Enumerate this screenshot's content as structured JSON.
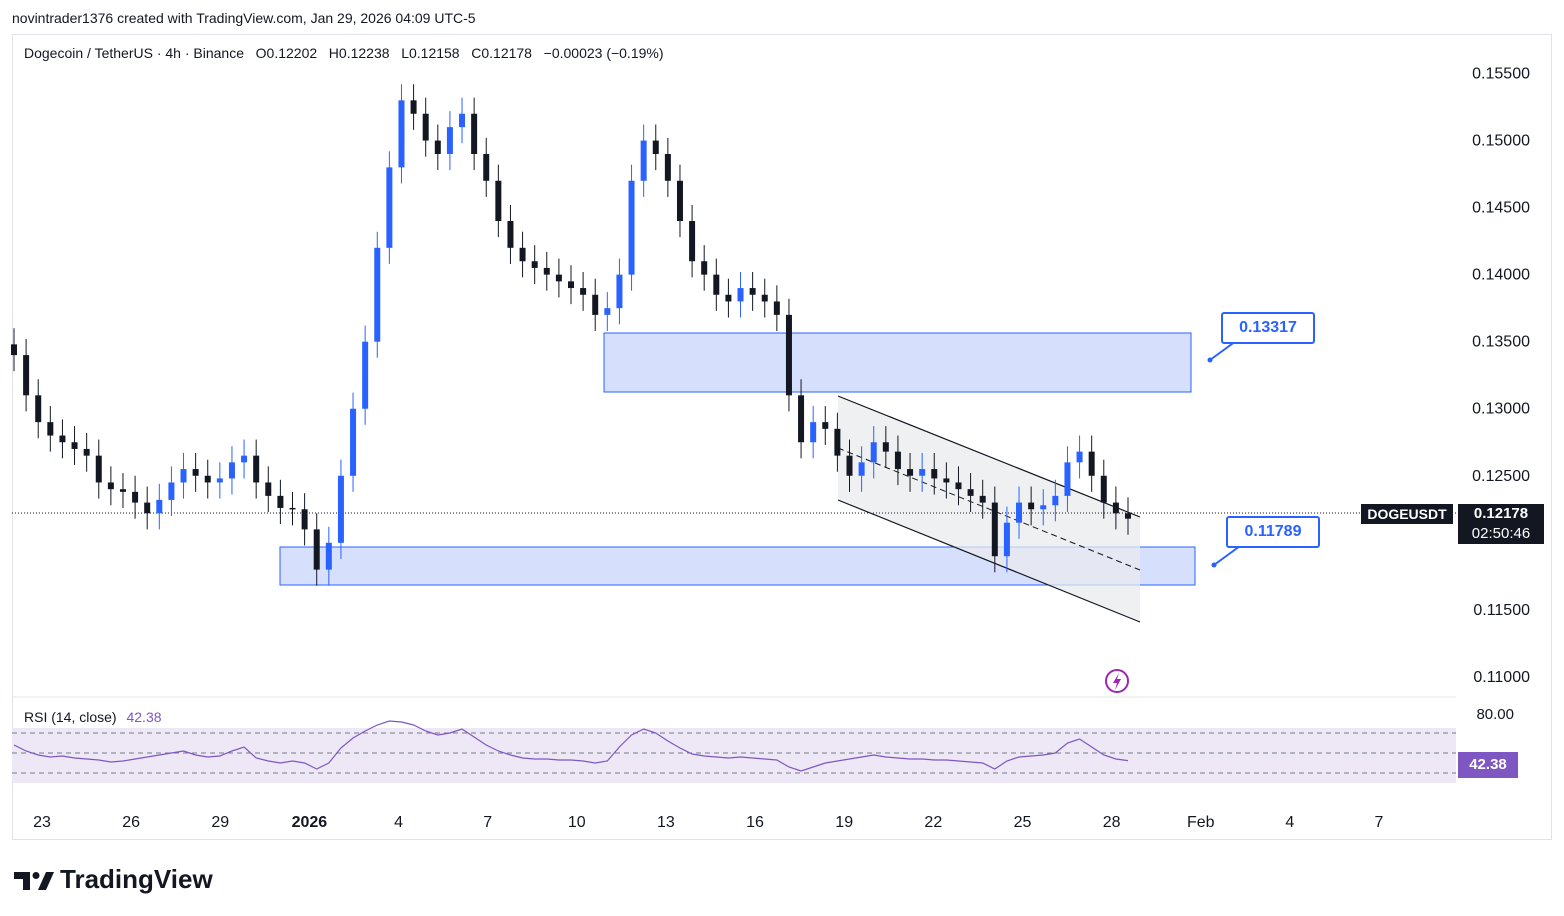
{
  "header": {
    "attribution": "novintrader1376 created with TradingView.com, Jan 29, 2026 04:09 UTC-5"
  },
  "symbol_line": {
    "text": "Dogecoin / TetherUS · 4h · Binance   O0.12202   H0.12238   L0.12158   C0.12178   −0.00023 (−0.19%)"
  },
  "price_tags": {
    "symbol": "DOGEUSDT",
    "last_price": "0.12178",
    "countdown": "02:50:46",
    "rsi_value": "42.38"
  },
  "callouts": {
    "upper": "0.13317",
    "lower": "0.11789"
  },
  "rsi": {
    "label": "RSI (14, close)",
    "value": "42.38",
    "axis_label": "80.00"
  },
  "logo": {
    "text": "TradingView",
    "icon": "tradingview-logo-icon"
  },
  "colors": {
    "up": "#2962ff",
    "down": "#131722",
    "zone_fill": "#d6e0fd",
    "zone_border": "#2962ff",
    "rsi_line": "#7e57c2",
    "rsi_band": "#ede7f6",
    "callout": "#2962ff"
  },
  "chart_data": {
    "type": "line",
    "title": "Dogecoin / TetherUS · 4h · Binance",
    "x_tick_labels": [
      "23",
      "26",
      "29",
      "2026",
      "4",
      "7",
      "10",
      "13",
      "16",
      "19",
      "22",
      "25",
      "28",
      "Feb",
      "4",
      "7"
    ],
    "y_tick_labels": [
      "0.15500",
      "0.15000",
      "0.14500",
      "0.14000",
      "0.13500",
      "0.13000",
      "0.12500",
      "0.11500",
      "0.11000"
    ],
    "ylim": [
      0.1085,
      0.1575
    ],
    "series": [
      {
        "values": [
          0.134,
          0.131,
          0.129,
          0.128,
          0.1275,
          0.127,
          0.1265,
          0.1245,
          0.124,
          0.1238,
          0.123,
          0.1222,
          0.1232,
          0.1245,
          0.1255,
          0.125,
          0.1245,
          0.1248,
          0.126,
          0.1265,
          0.1245,
          0.1235,
          0.1226,
          0.1225,
          0.121,
          0.118,
          0.12,
          0.125,
          0.13,
          0.135,
          0.142,
          0.148,
          0.153,
          0.152,
          0.15,
          0.149,
          0.151,
          0.152,
          0.149,
          0.147,
          0.144,
          0.142,
          0.141,
          0.1405,
          0.14,
          0.1395,
          0.139,
          0.1385,
          0.137,
          0.1375,
          0.14,
          0.147,
          0.15,
          0.149,
          0.147,
          0.144,
          0.141,
          0.14,
          0.1385,
          0.138,
          0.139,
          0.1385,
          0.138,
          0.137,
          0.131,
          0.1275,
          0.129,
          0.1285,
          0.1265,
          0.125,
          0.126,
          0.1275,
          0.1268,
          0.1255,
          0.125,
          0.1255,
          0.1248,
          0.1245,
          0.124,
          0.1235,
          0.123,
          0.119,
          0.1215,
          0.123,
          0.1225,
          0.1228,
          0.1235,
          0.126,
          0.1268,
          0.125,
          0.123,
          0.1222,
          0.1218
        ],
        "rsi_values": [
          58,
          52,
          48,
          46,
          47,
          45,
          44,
          43,
          41,
          42,
          44,
          46,
          48,
          50,
          52,
          48,
          46,
          47,
          52,
          56,
          45,
          42,
          40,
          42,
          40,
          34,
          40,
          55,
          65,
          72,
          78,
          82,
          81,
          78,
          72,
          68,
          70,
          74,
          66,
          58,
          52,
          48,
          45,
          44,
          44,
          43,
          43,
          42,
          40,
          42,
          56,
          68,
          74,
          70,
          62,
          55,
          49,
          47,
          46,
          45,
          46,
          45,
          44,
          43,
          36,
          32,
          36,
          40,
          42,
          44,
          46,
          48,
          46,
          45,
          44,
          44,
          43,
          43,
          42,
          41,
          40,
          34,
          42,
          46,
          47,
          48,
          50,
          60,
          64,
          56,
          48,
          44,
          42.38
        ]
      }
    ],
    "rsi_levels": [
      70,
      50,
      30
    ]
  }
}
